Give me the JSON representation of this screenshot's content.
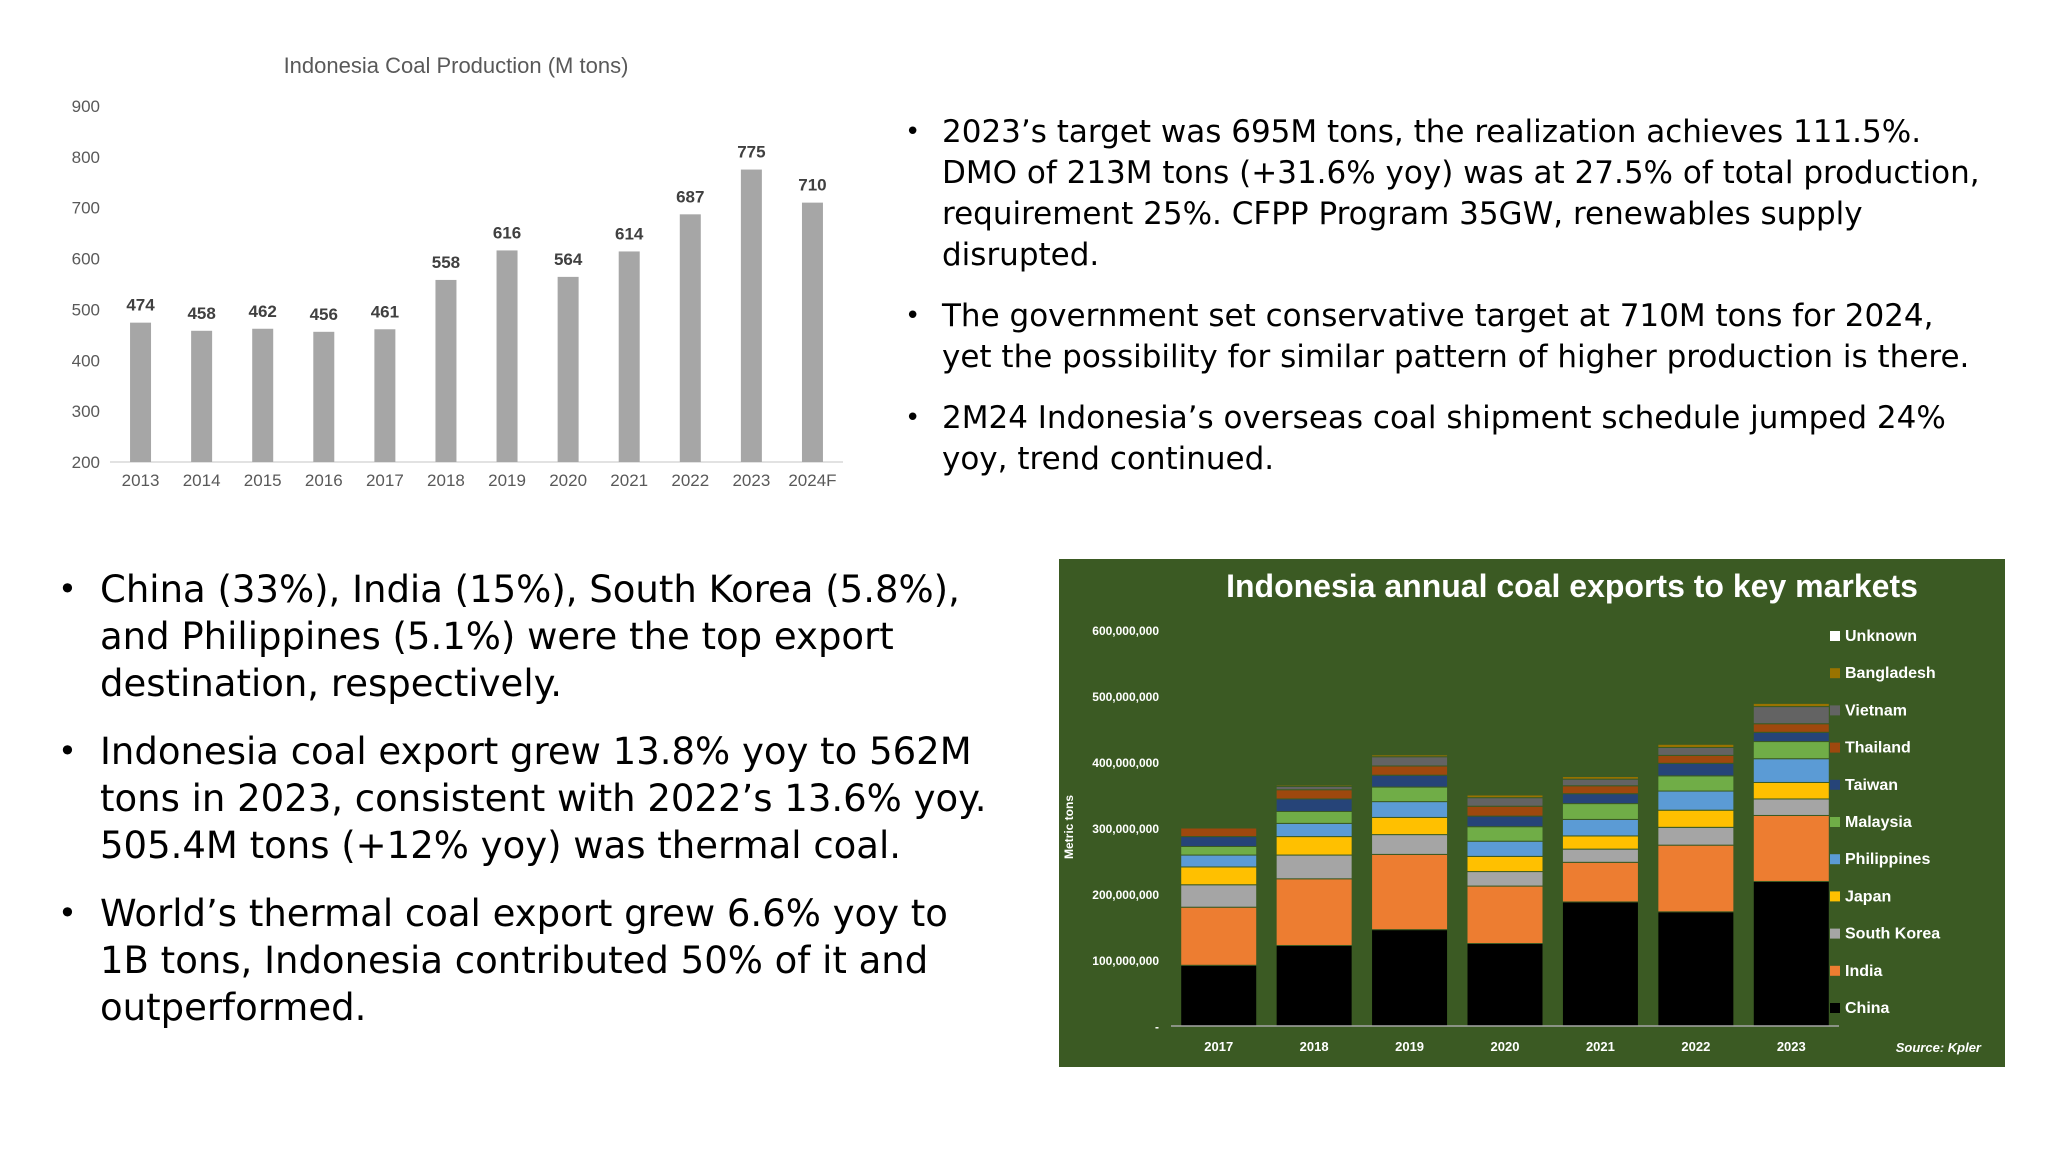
{
  "chart_data": [
    {
      "type": "bar",
      "title": "Indonesia Coal Production (M tons)",
      "categories": [
        "2013",
        "2014",
        "2015",
        "2016",
        "2017",
        "2018",
        "2019",
        "2020",
        "2021",
        "2022",
        "2023",
        "2024F"
      ],
      "values": [
        474,
        458,
        462,
        456,
        461,
        558,
        616,
        564,
        614,
        687,
        775,
        710
      ],
      "ylim": [
        200,
        900
      ],
      "yticks": [
        "200",
        "300",
        "400",
        "500",
        "600",
        "700",
        "800",
        "900"
      ],
      "grid": false,
      "bar_color": "#a6a6a6",
      "data_labels": true
    },
    {
      "type": "bar",
      "stacked": true,
      "title": "Indonesia annual coal exports to key markets",
      "ylabel": "Metric tons",
      "source": "Source: Kpler",
      "background": "#3b5a23",
      "categories": [
        "2017",
        "2018",
        "2019",
        "2020",
        "2021",
        "2022",
        "2023"
      ],
      "ylim": [
        0,
        600000000
      ],
      "yticks": [
        "-",
        "100,000,000",
        "200,000,000",
        "300,000,000",
        "400,000,000",
        "500,000,000",
        "600,000,000"
      ],
      "legend_position": "right",
      "series": [
        {
          "name": "China",
          "color": "#000000",
          "values": [
            92000000,
            122000000,
            146000000,
            125000000,
            188000000,
            173000000,
            219000000
          ]
        },
        {
          "name": "India",
          "color": "#ed7d31",
          "values": [
            88000000,
            101000000,
            114000000,
            87000000,
            60000000,
            101000000,
            100000000
          ]
        },
        {
          "name": "South Korea",
          "color": "#a5a5a5",
          "values": [
            34000000,
            36000000,
            30000000,
            22000000,
            20000000,
            27000000,
            25000000
          ]
        },
        {
          "name": "Japan",
          "color": "#ffc000",
          "values": [
            27000000,
            28000000,
            26000000,
            23000000,
            20000000,
            26000000,
            25000000
          ]
        },
        {
          "name": "Philippines",
          "color": "#5b9bd5",
          "values": [
            18000000,
            20000000,
            24000000,
            23000000,
            25000000,
            29000000,
            36000000
          ]
        },
        {
          "name": "Malaysia",
          "color": "#70ad47",
          "values": [
            13000000,
            18000000,
            22000000,
            22000000,
            24000000,
            23000000,
            26000000
          ]
        },
        {
          "name": "Taiwan",
          "color": "#264478",
          "values": [
            15000000,
            19000000,
            18000000,
            16000000,
            15000000,
            19000000,
            14000000
          ]
        },
        {
          "name": "Thailand",
          "color": "#9e480e",
          "values": [
            13000000,
            14000000,
            14000000,
            15000000,
            12000000,
            12000000,
            13000000
          ]
        },
        {
          "name": "Vietnam",
          "color": "#636363",
          "values": [
            0,
            5000000,
            14000000,
            13000000,
            10000000,
            12000000,
            26000000
          ]
        },
        {
          "name": "Bangladesh",
          "color": "#997300",
          "values": [
            0,
            2000000,
            3000000,
            4000000,
            4000000,
            5000000,
            5000000
          ]
        },
        {
          "name": "Unknown",
          "color": "#ffffff",
          "values": [
            0,
            0,
            1000000,
            1000000,
            1000000,
            1000000,
            1000000
          ]
        }
      ]
    }
  ],
  "bullets_top": [
    "2023’s target was 695M tons, the realization achieves 111.5%. DMO of 213M tons (+31.6% yoy) was at 27.5% of total production, requirement 25%. CFPP Program 35GW, renewables supply disrupted.",
    "The government set conservative target at 710M tons for 2024, yet the possibility for similar pattern of higher production is there.",
    "2M24 Indonesia’s overseas coal shipment schedule jumped 24% yoy, trend continued."
  ],
  "bullets_bottom": [
    "China (33%), India (15%), South Korea (5.8%), and Philippines (5.1%) were the top export destination, respectively.",
    "Indonesia coal export grew 13.8% yoy to 562M tons in 2023, consistent with 2022’s 13.6% yoy. 505.4M tons (+12% yoy) was thermal coal.",
    "World’s thermal coal export grew 6.6% yoy to 1B tons, Indonesia contributed 50% of it and outperformed."
  ]
}
